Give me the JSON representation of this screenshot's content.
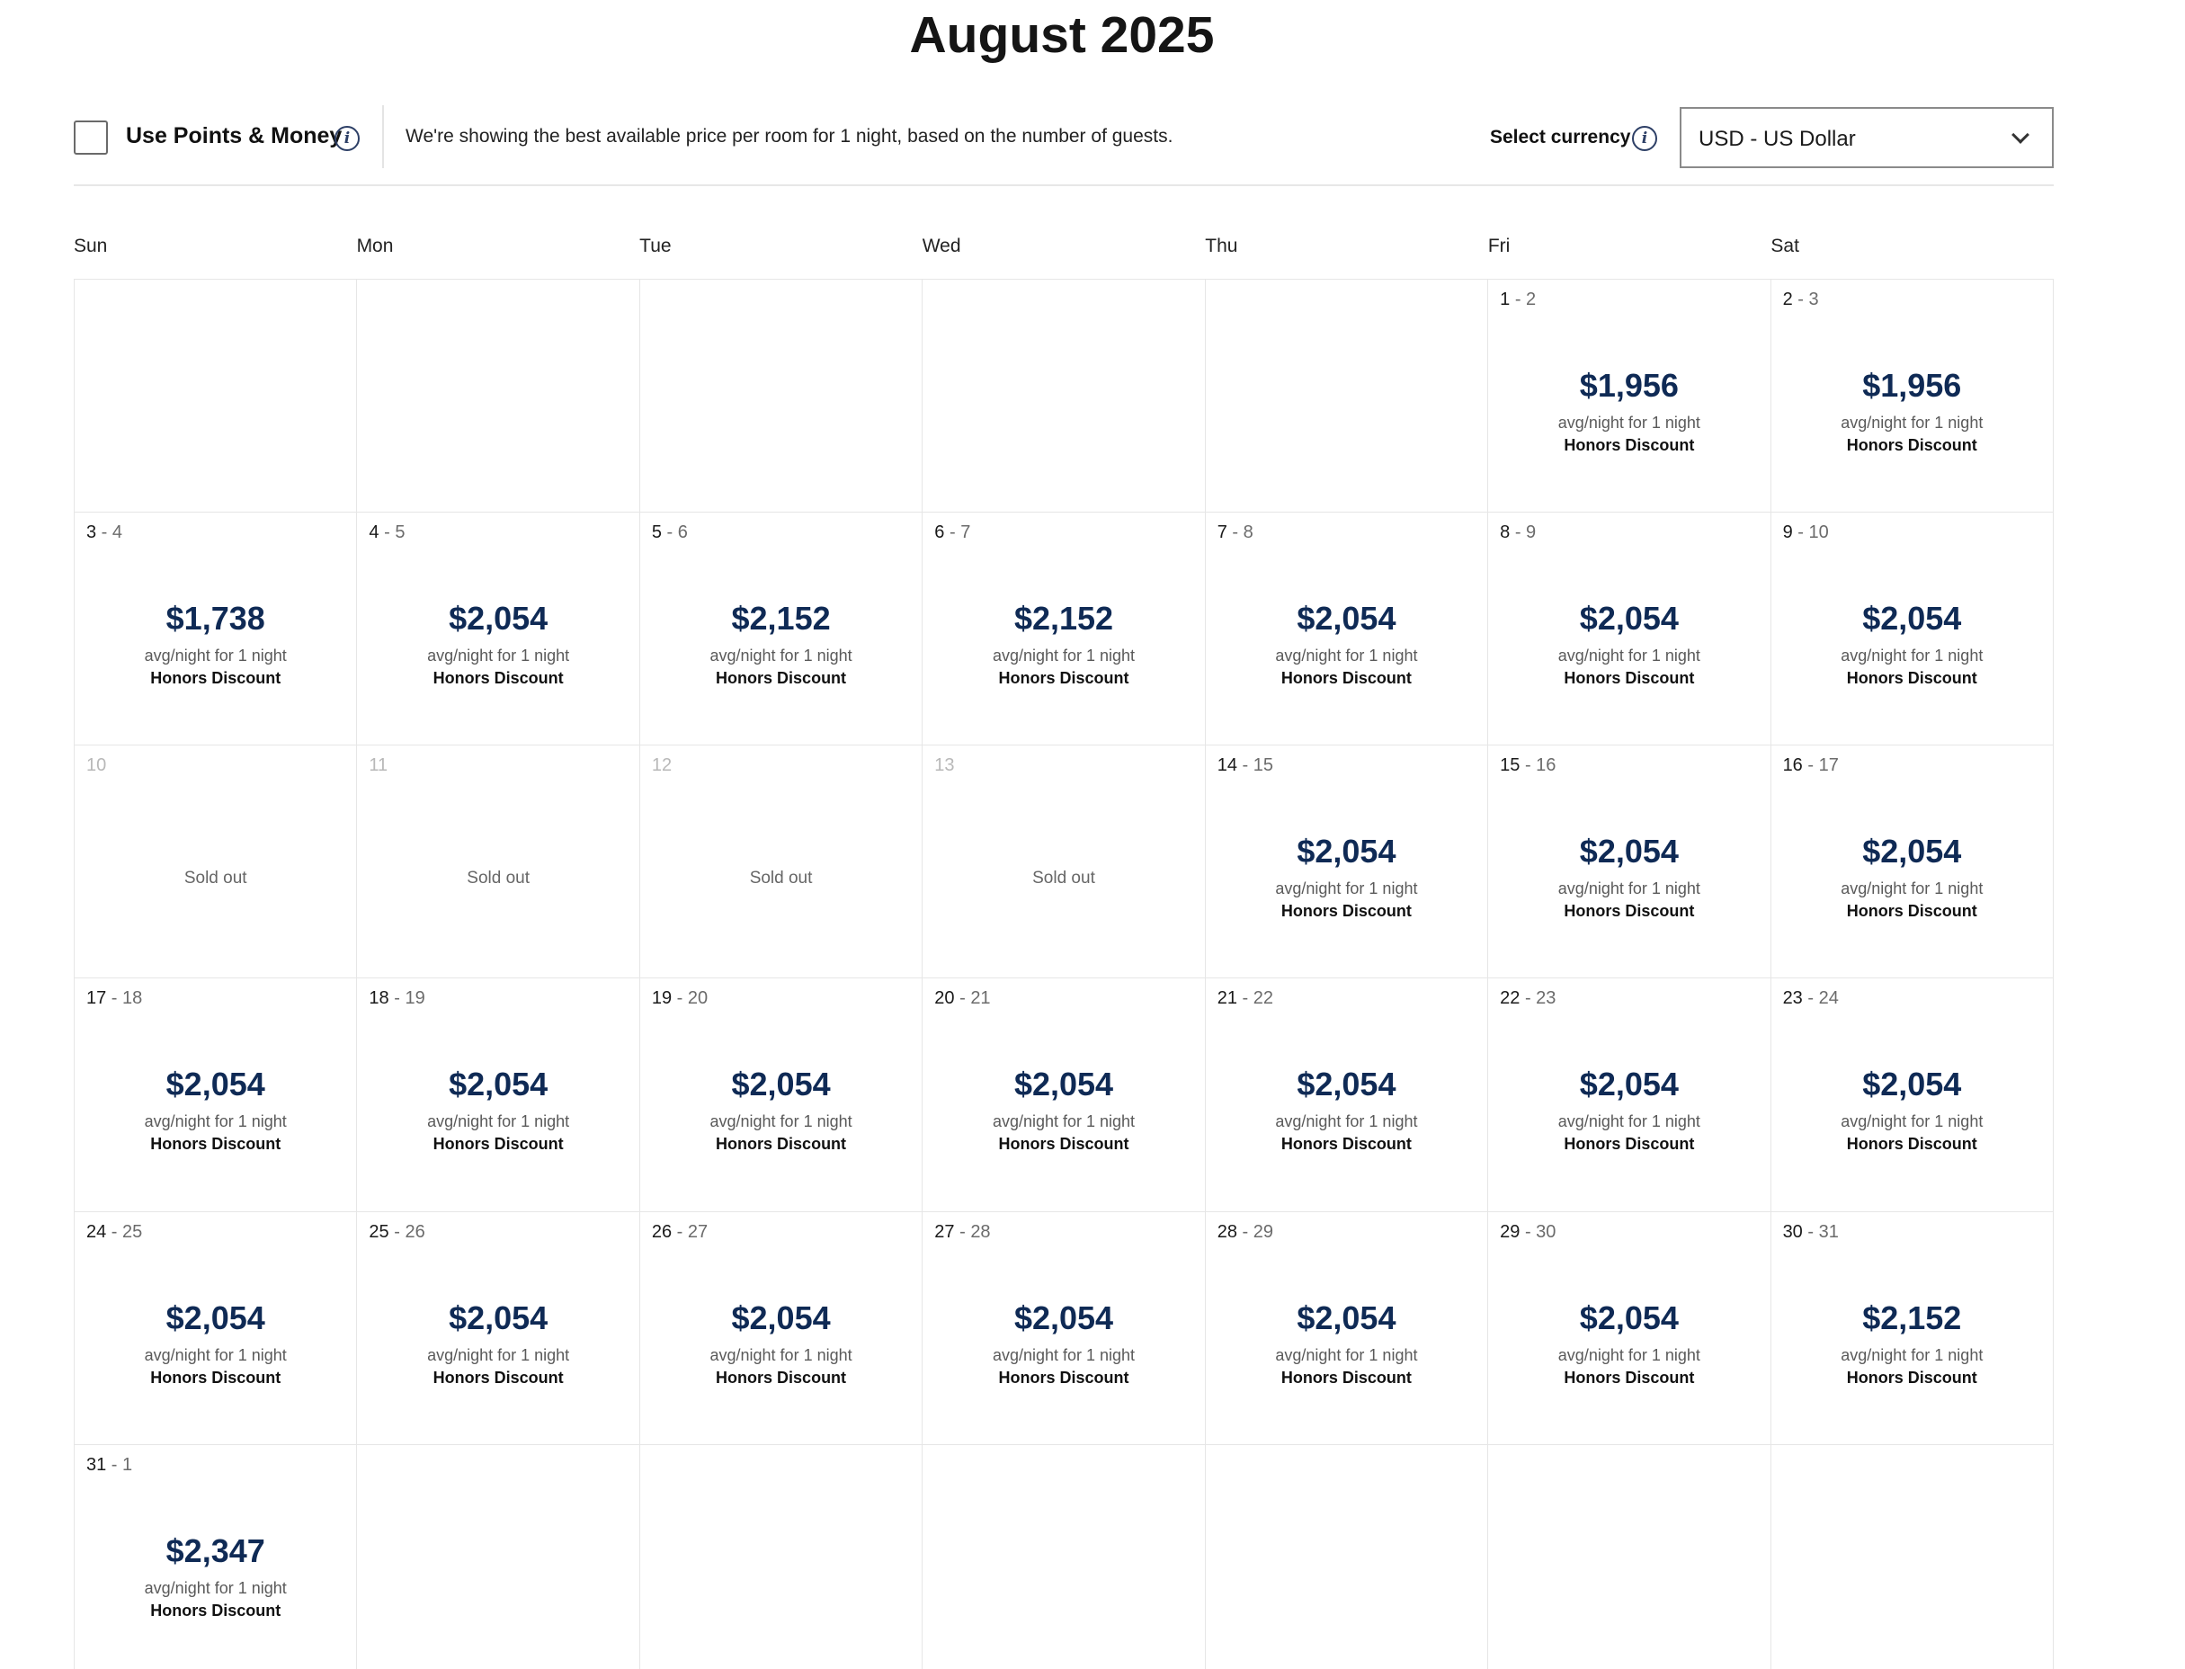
{
  "calendar": {
    "month_title": "August 2025",
    "options": {
      "points_label": "Use Points & Money",
      "points_checked": false,
      "notice": "We're showing the best available price per room for 1 night, based on the number of guests.",
      "currency_label": "Select currency",
      "currency_value": "USD - US Dollar"
    },
    "weekdays": [
      "Sun",
      "Mon",
      "Tue",
      "Wed",
      "Thu",
      "Fri",
      "Sat"
    ],
    "cells": [
      null,
      null,
      null,
      null,
      null,
      {
        "from": "1",
        "to": "2",
        "price": "$1,956",
        "note": "avg/night for 1 night",
        "tag": "Honors Discount"
      },
      {
        "from": "2",
        "to": "3",
        "price": "$1,956",
        "note": "avg/night for 1 night",
        "tag": "Honors Discount"
      },
      {
        "from": "3",
        "to": "4",
        "price": "$1,738",
        "note": "avg/night for 1 night",
        "tag": "Honors Discount"
      },
      {
        "from": "4",
        "to": "5",
        "price": "$2,054",
        "note": "avg/night for 1 night",
        "tag": "Honors Discount"
      },
      {
        "from": "5",
        "to": "6",
        "price": "$2,152",
        "note": "avg/night for 1 night",
        "tag": "Honors Discount"
      },
      {
        "from": "6",
        "to": "7",
        "price": "$2,152",
        "note": "avg/night for 1 night",
        "tag": "Honors Discount"
      },
      {
        "from": "7",
        "to": "8",
        "price": "$2,054",
        "note": "avg/night for 1 night",
        "tag": "Honors Discount"
      },
      {
        "from": "8",
        "to": "9",
        "price": "$2,054",
        "note": "avg/night for 1 night",
        "tag": "Honors Discount"
      },
      {
        "from": "9",
        "to": "10",
        "price": "$2,054",
        "note": "avg/night for 1 night",
        "tag": "Honors Discount"
      },
      {
        "from": "10",
        "status": "Sold out"
      },
      {
        "from": "11",
        "status": "Sold out"
      },
      {
        "from": "12",
        "status": "Sold out"
      },
      {
        "from": "13",
        "status": "Sold out"
      },
      {
        "from": "14",
        "to": "15",
        "price": "$2,054",
        "note": "avg/night for 1 night",
        "tag": "Honors Discount"
      },
      {
        "from": "15",
        "to": "16",
        "price": "$2,054",
        "note": "avg/night for 1 night",
        "tag": "Honors Discount"
      },
      {
        "from": "16",
        "to": "17",
        "price": "$2,054",
        "note": "avg/night for 1 night",
        "tag": "Honors Discount"
      },
      {
        "from": "17",
        "to": "18",
        "price": "$2,054",
        "note": "avg/night for 1 night",
        "tag": "Honors Discount"
      },
      {
        "from": "18",
        "to": "19",
        "price": "$2,054",
        "note": "avg/night for 1 night",
        "tag": "Honors Discount"
      },
      {
        "from": "19",
        "to": "20",
        "price": "$2,054",
        "note": "avg/night for 1 night",
        "tag": "Honors Discount"
      },
      {
        "from": "20",
        "to": "21",
        "price": "$2,054",
        "note": "avg/night for 1 night",
        "tag": "Honors Discount"
      },
      {
        "from": "21",
        "to": "22",
        "price": "$2,054",
        "note": "avg/night for 1 night",
        "tag": "Honors Discount"
      },
      {
        "from": "22",
        "to": "23",
        "price": "$2,054",
        "note": "avg/night for 1 night",
        "tag": "Honors Discount"
      },
      {
        "from": "23",
        "to": "24",
        "price": "$2,054",
        "note": "avg/night for 1 night",
        "tag": "Honors Discount"
      },
      {
        "from": "24",
        "to": "25",
        "price": "$2,054",
        "note": "avg/night for 1 night",
        "tag": "Honors Discount"
      },
      {
        "from": "25",
        "to": "26",
        "price": "$2,054",
        "note": "avg/night for 1 night",
        "tag": "Honors Discount"
      },
      {
        "from": "26",
        "to": "27",
        "price": "$2,054",
        "note": "avg/night for 1 night",
        "tag": "Honors Discount"
      },
      {
        "from": "27",
        "to": "28",
        "price": "$2,054",
        "note": "avg/night for 1 night",
        "tag": "Honors Discount"
      },
      {
        "from": "28",
        "to": "29",
        "price": "$2,054",
        "note": "avg/night for 1 night",
        "tag": "Honors Discount"
      },
      {
        "from": "29",
        "to": "30",
        "price": "$2,054",
        "note": "avg/night for 1 night",
        "tag": "Honors Discount"
      },
      {
        "from": "30",
        "to": "31",
        "price": "$2,152",
        "note": "avg/night for 1 night",
        "tag": "Honors Discount"
      },
      {
        "from": "31",
        "to": "1",
        "price": "$2,347",
        "note": "avg/night for 1 night",
        "tag": "Honors Discount"
      },
      null,
      null,
      null,
      null,
      null,
      null
    ]
  }
}
